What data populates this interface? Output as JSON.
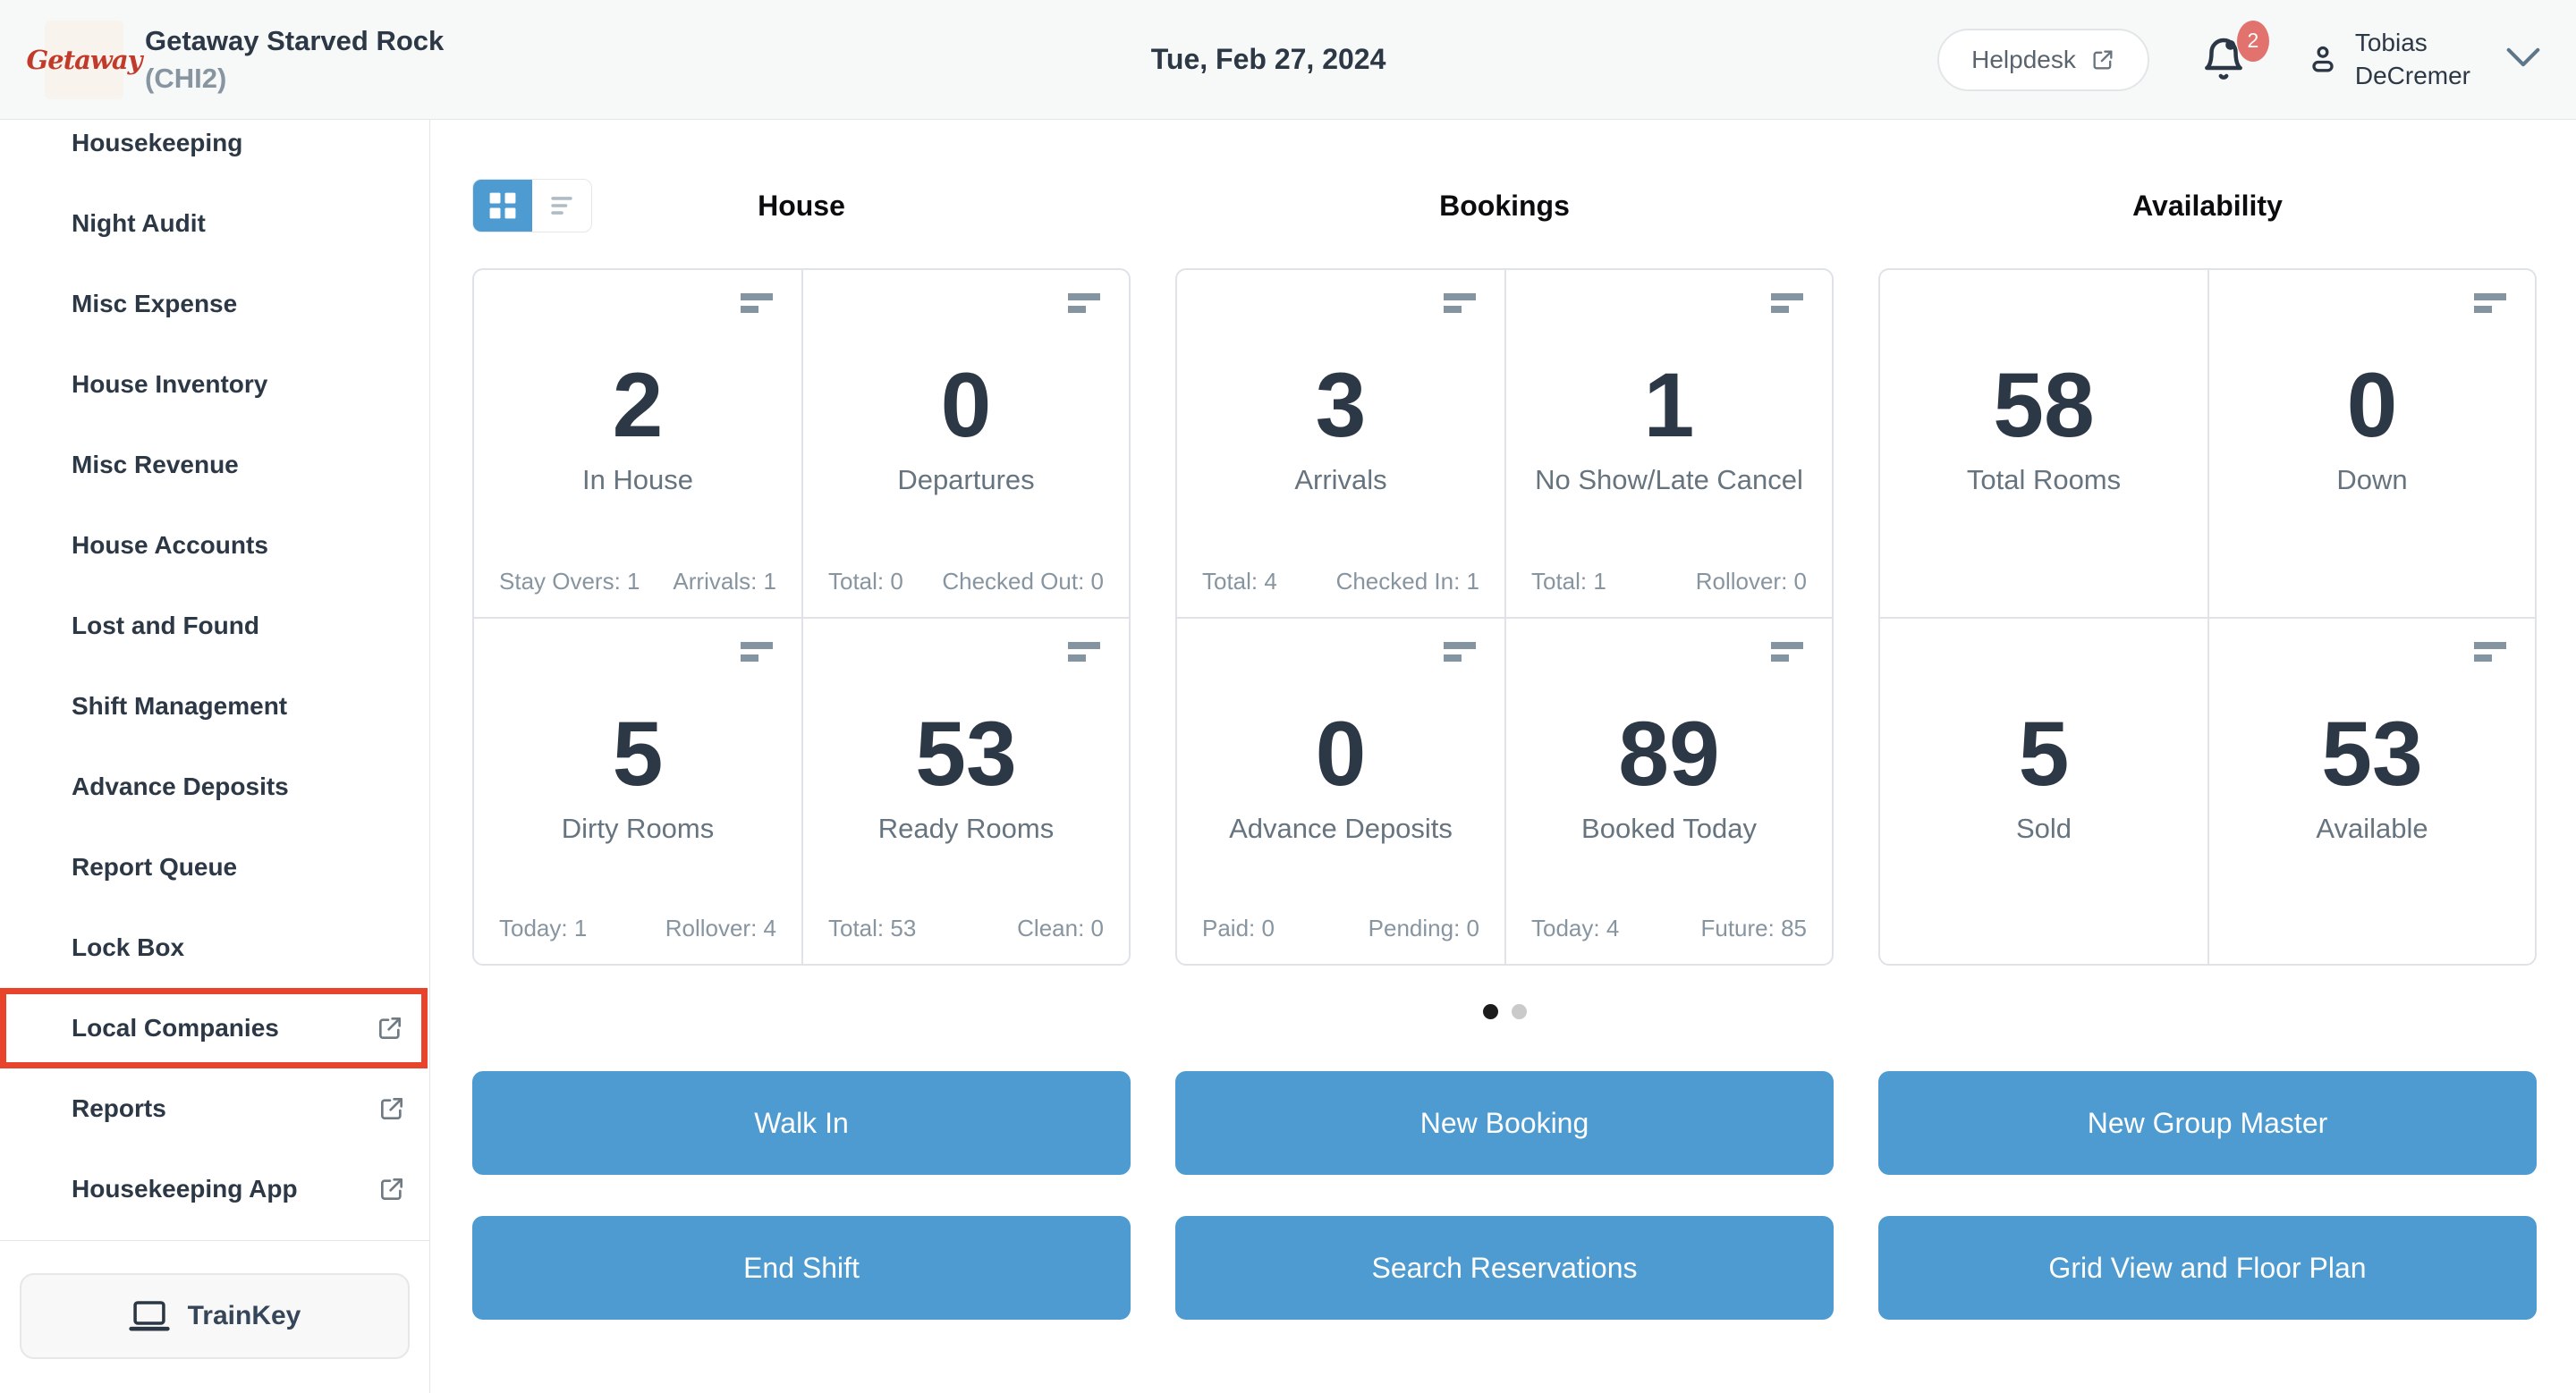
{
  "header": {
    "logo": "Getaway",
    "property_name": "Getaway Starved Rock",
    "property_code": "(CHI2)",
    "date": "Tue, Feb 27, 2024",
    "helpdesk": "Helpdesk",
    "notifications_badge": "2",
    "user_first": "Tobias",
    "user_last": "DeCremer"
  },
  "sidebar": {
    "items": [
      {
        "label": "Housekeeping",
        "external": false,
        "highlighted": false
      },
      {
        "label": "Night Audit",
        "external": false,
        "highlighted": false
      },
      {
        "label": "Misc Expense",
        "external": false,
        "highlighted": false
      },
      {
        "label": "House Inventory",
        "external": false,
        "highlighted": false
      },
      {
        "label": "Misc Revenue",
        "external": false,
        "highlighted": false
      },
      {
        "label": "House Accounts",
        "external": false,
        "highlighted": false
      },
      {
        "label": "Lost and Found",
        "external": false,
        "highlighted": false
      },
      {
        "label": "Shift Management",
        "external": false,
        "highlighted": false
      },
      {
        "label": "Advance Deposits",
        "external": false,
        "highlighted": false
      },
      {
        "label": "Report Queue",
        "external": false,
        "highlighted": false
      },
      {
        "label": "Lock Box",
        "external": false,
        "highlighted": false
      },
      {
        "label": "Local Companies",
        "external": true,
        "highlighted": true
      },
      {
        "label": "Reports",
        "external": true,
        "highlighted": false
      },
      {
        "label": "Housekeeping App",
        "external": true,
        "highlighted": false
      }
    ],
    "trainkey": "TrainKey"
  },
  "dashboard": {
    "view_toggle": {
      "active": "grid"
    },
    "sections": [
      {
        "title": "House",
        "cards": [
          {
            "value": "2",
            "label": "In House",
            "stat_left": "Stay Overs: 1",
            "stat_right": "Arrivals: 1",
            "menu_icon": true
          },
          {
            "value": "0",
            "label": "Departures",
            "stat_left": "Total: 0",
            "stat_right": "Checked Out: 0",
            "menu_icon": true
          },
          {
            "value": "5",
            "label": "Dirty Rooms",
            "stat_left": "Today: 1",
            "stat_right": "Rollover: 4",
            "menu_icon": true
          },
          {
            "value": "53",
            "label": "Ready Rooms",
            "stat_left": "Total: 53",
            "stat_right": "Clean: 0",
            "menu_icon": true
          }
        ]
      },
      {
        "title": "Bookings",
        "cards": [
          {
            "value": "3",
            "label": "Arrivals",
            "stat_left": "Total: 4",
            "stat_right": "Checked In: 1",
            "menu_icon": true
          },
          {
            "value": "1",
            "label": "No Show/Late Cancel",
            "stat_left": "Total: 1",
            "stat_right": "Rollover: 0",
            "menu_icon": true
          },
          {
            "value": "0",
            "label": "Advance Deposits",
            "stat_left": "Paid: 0",
            "stat_right": "Pending: 0",
            "menu_icon": true
          },
          {
            "value": "89",
            "label": "Booked Today",
            "stat_left": "Today: 4",
            "stat_right": "Future: 85",
            "menu_icon": true
          }
        ]
      },
      {
        "title": "Availability",
        "cards": [
          {
            "value": "58",
            "label": "Total Rooms",
            "menu_icon": false
          },
          {
            "value": "0",
            "label": "Down",
            "menu_icon": true
          },
          {
            "value": "5",
            "label": "Sold",
            "menu_icon": false
          },
          {
            "value": "53",
            "label": "Available",
            "menu_icon": true
          }
        ]
      }
    ],
    "pagination": {
      "dots": 2,
      "active_index": 0
    },
    "actions": [
      [
        "Walk In",
        "New Booking",
        "New Group Master"
      ],
      [
        "End Shift",
        "Search Reservations",
        "Grid View and Floor Plan"
      ]
    ]
  },
  "colors": {
    "accent_blue": "#4d9bd1",
    "highlight_red": "#e8432b",
    "badge_red": "#e2726e",
    "logo_red": "#c23b2a"
  }
}
